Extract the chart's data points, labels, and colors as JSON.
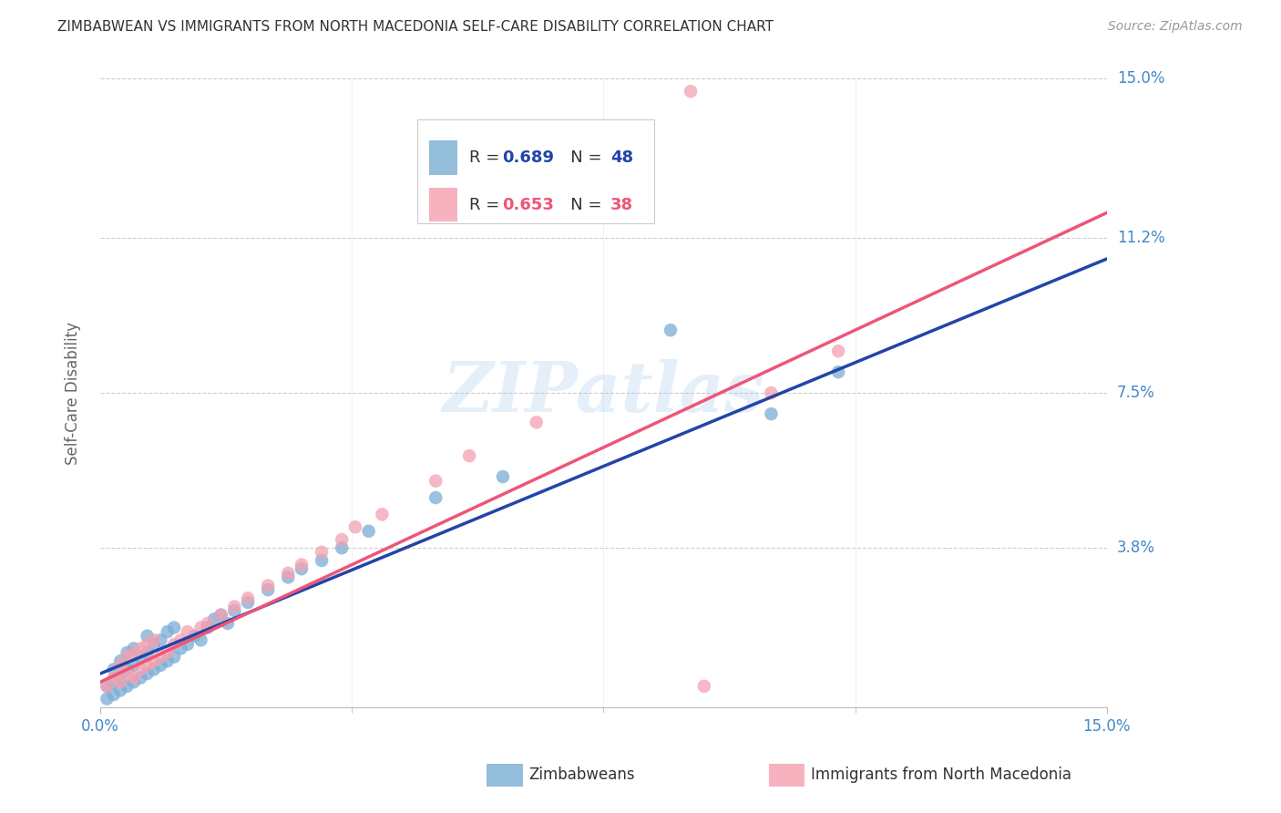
{
  "title": "ZIMBABWEAN VS IMMIGRANTS FROM NORTH MACEDONIA SELF-CARE DISABILITY CORRELATION CHART",
  "source": "Source: ZipAtlas.com",
  "ylabel": "Self-Care Disability",
  "xlim": [
    0.0,
    0.15
  ],
  "ylim": [
    0.0,
    0.15
  ],
  "ytick_values": [
    0.038,
    0.075,
    0.112,
    0.15
  ],
  "ytick_labels": [
    "3.8%",
    "7.5%",
    "11.2%",
    "15.0%"
  ],
  "xtick_labels": [
    "0.0%",
    "15.0%"
  ],
  "grid_color": "#cccccc",
  "background_color": "#ffffff",
  "blue_scatter_color": "#7aadd4",
  "pink_scatter_color": "#f4a0b0",
  "blue_line_color": "#2244aa",
  "pink_line_color": "#ee5577",
  "axis_label_color": "#4488cc",
  "title_color": "#333333",
  "blue_line_y0": 0.008,
  "blue_line_y1": 0.107,
  "pink_line_y0": 0.006,
  "pink_line_y1": 0.118,
  "zim_x": [
    0.001,
    0.001,
    0.002,
    0.002,
    0.002,
    0.003,
    0.003,
    0.003,
    0.004,
    0.004,
    0.004,
    0.005,
    0.005,
    0.005,
    0.006,
    0.006,
    0.007,
    0.007,
    0.007,
    0.008,
    0.008,
    0.009,
    0.009,
    0.01,
    0.01,
    0.011,
    0.011,
    0.012,
    0.013,
    0.014,
    0.015,
    0.016,
    0.017,
    0.018,
    0.019,
    0.02,
    0.022,
    0.025,
    0.028,
    0.03,
    0.033,
    0.036,
    0.04,
    0.05,
    0.06,
    0.085,
    0.1,
    0.11
  ],
  "zim_y": [
    0.002,
    0.005,
    0.003,
    0.006,
    0.009,
    0.004,
    0.007,
    0.011,
    0.005,
    0.009,
    0.013,
    0.006,
    0.01,
    0.014,
    0.007,
    0.012,
    0.008,
    0.013,
    0.017,
    0.009,
    0.015,
    0.01,
    0.016,
    0.011,
    0.018,
    0.012,
    0.019,
    0.014,
    0.015,
    0.017,
    0.016,
    0.019,
    0.021,
    0.022,
    0.02,
    0.023,
    0.025,
    0.028,
    0.031,
    0.033,
    0.035,
    0.038,
    0.042,
    0.05,
    0.055,
    0.09,
    0.07,
    0.08
  ],
  "mac_x": [
    0.001,
    0.002,
    0.003,
    0.003,
    0.004,
    0.004,
    0.005,
    0.005,
    0.006,
    0.006,
    0.007,
    0.007,
    0.008,
    0.008,
    0.009,
    0.01,
    0.011,
    0.012,
    0.013,
    0.015,
    0.016,
    0.018,
    0.02,
    0.022,
    0.025,
    0.028,
    0.03,
    0.033,
    0.036,
    0.038,
    0.042,
    0.05,
    0.055,
    0.065,
    0.088,
    0.09,
    0.1,
    0.11
  ],
  "mac_y": [
    0.005,
    0.007,
    0.006,
    0.01,
    0.008,
    0.012,
    0.007,
    0.013,
    0.009,
    0.014,
    0.01,
    0.015,
    0.011,
    0.016,
    0.012,
    0.013,
    0.015,
    0.016,
    0.018,
    0.019,
    0.02,
    0.022,
    0.024,
    0.026,
    0.029,
    0.032,
    0.034,
    0.037,
    0.04,
    0.043,
    0.046,
    0.054,
    0.06,
    0.068,
    0.147,
    0.005,
    0.075,
    0.085
  ]
}
